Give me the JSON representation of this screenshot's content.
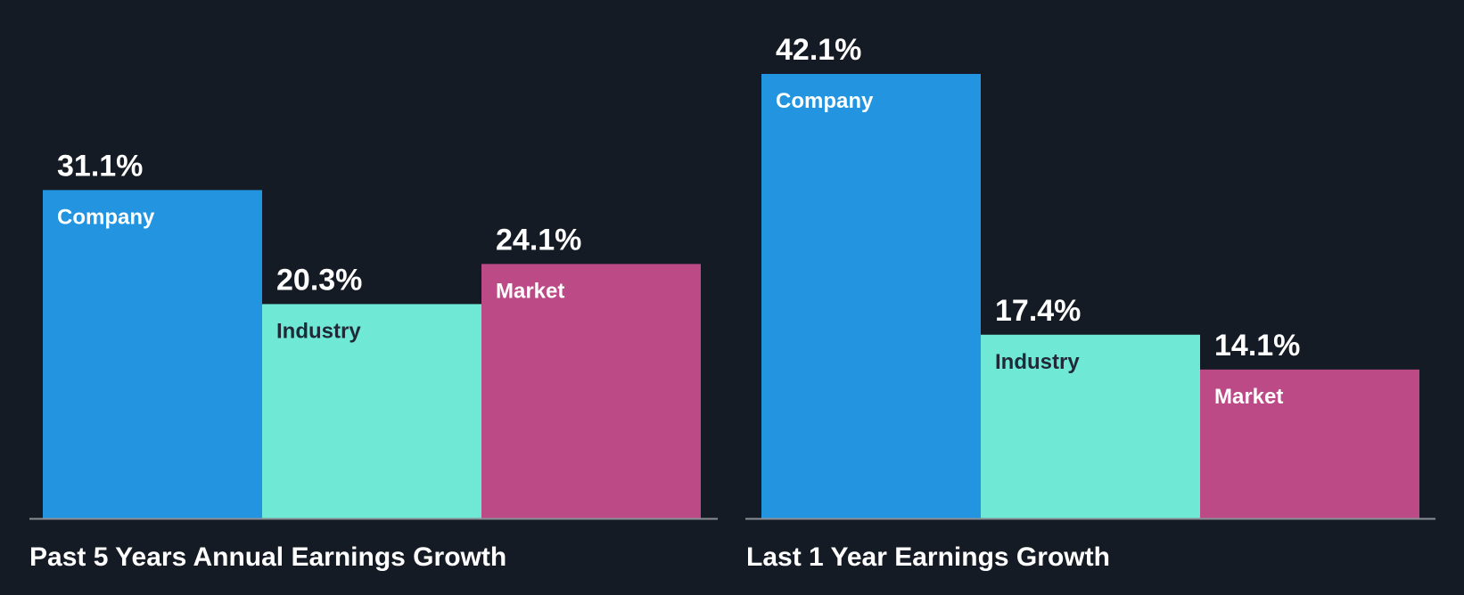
{
  "chart_data": [
    {
      "type": "bar",
      "title": "Past 5 Years Annual Earnings Growth",
      "categories": [
        "Company",
        "Industry",
        "Market"
      ],
      "values": [
        31.1,
        20.3,
        24.1
      ],
      "value_labels": [
        "31.1%",
        "20.3%",
        "24.1%"
      ],
      "colors": [
        "#2394e0",
        "#6fe8d6",
        "#bb4a86"
      ],
      "label_colors": [
        "#ffffff",
        "#1f2a36",
        "#ffffff"
      ],
      "ylim": [
        0,
        42.1
      ],
      "grid": false,
      "legend": "none"
    },
    {
      "type": "bar",
      "title": "Last 1 Year Earnings Growth",
      "categories": [
        "Company",
        "Industry",
        "Market"
      ],
      "values": [
        42.1,
        17.4,
        14.1
      ],
      "value_labels": [
        "42.1%",
        "17.4%",
        "14.1%"
      ],
      "colors": [
        "#2394e0",
        "#6fe8d6",
        "#bb4a86"
      ],
      "label_colors": [
        "#ffffff",
        "#1f2a36",
        "#ffffff"
      ],
      "ylim": [
        0,
        42.1
      ],
      "grid": false,
      "legend": "none"
    }
  ],
  "colors": {
    "background": "#151b24",
    "axis": "#8a8f96"
  }
}
